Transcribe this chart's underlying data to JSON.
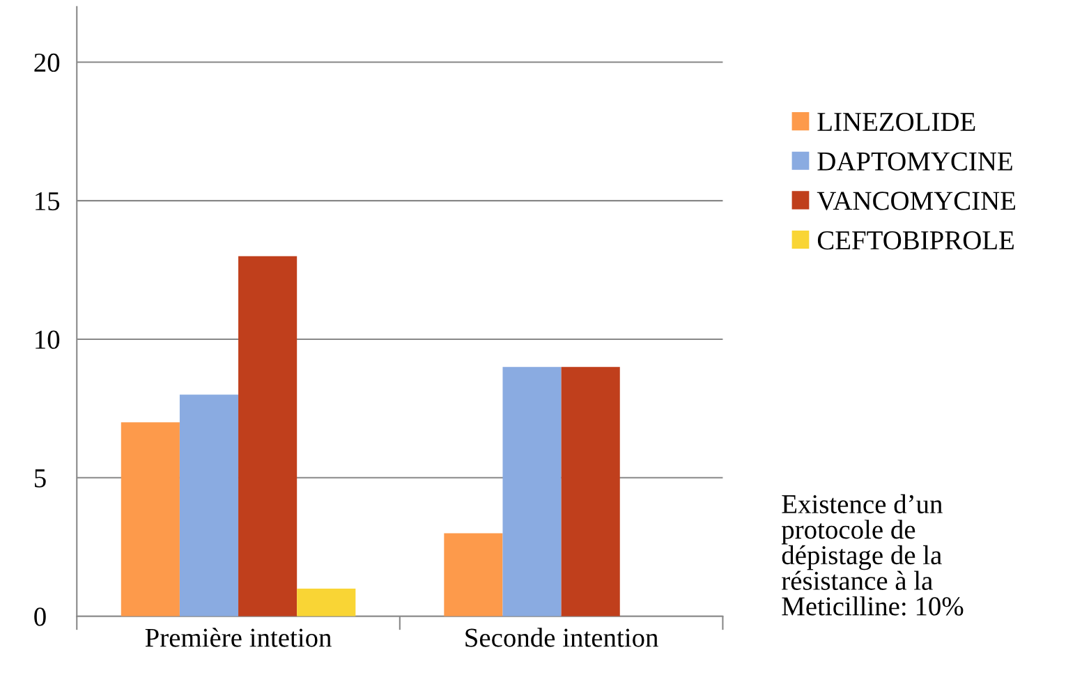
{
  "chart_data": {
    "type": "bar",
    "categories": [
      "Première intetion",
      "Seconde intention"
    ],
    "series": [
      {
        "name": "LINEZOLIDE",
        "color": "#fd9a4b",
        "values": [
          7,
          3
        ]
      },
      {
        "name": "DAPTOMYCINE",
        "color": "#8aabe1",
        "values": [
          8,
          9
        ]
      },
      {
        "name": "VANCOMYCINE",
        "color": "#c03f1c",
        "values": [
          13,
          9
        ]
      },
      {
        "name": "CEFTOBIPROLE",
        "color": "#f9d535",
        "values": [
          1,
          null
        ]
      }
    ],
    "ylim": [
      0,
      22
    ],
    "yticks": [
      0,
      5,
      10,
      15,
      20
    ],
    "grid": "y",
    "legend": "right",
    "annotations": [
      "Existence d’un\nprotocole de\ndépistage de la\nrésistance à la\nMeticilline: 10%"
    ]
  }
}
